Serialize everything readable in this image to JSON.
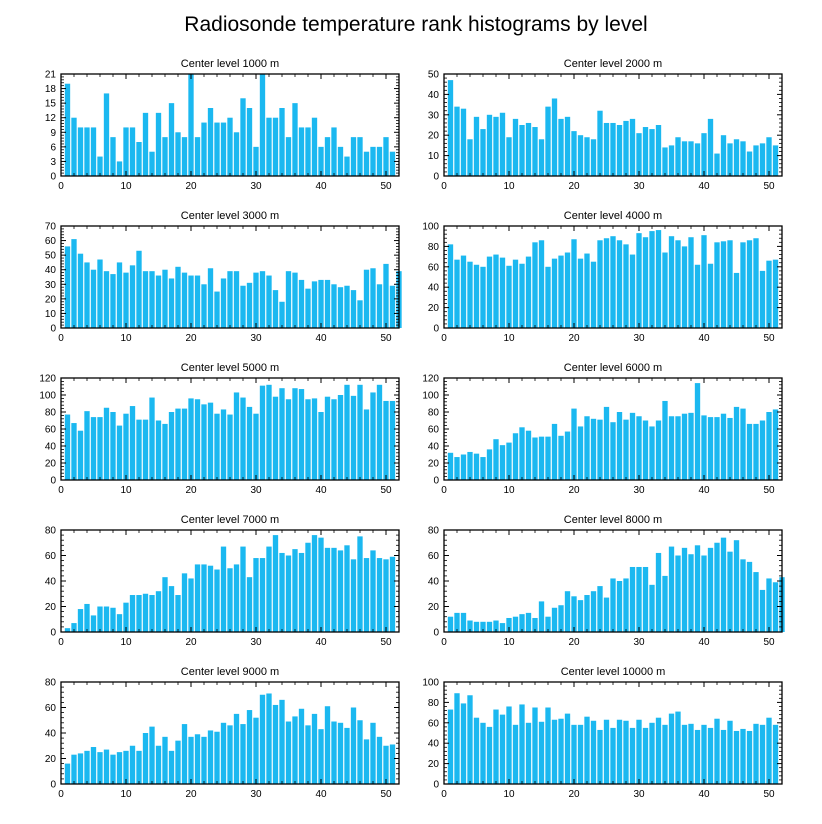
{
  "figure": {
    "title": "Radiosonde temperature rank histograms by level",
    "bar_color": "#1bb8f0",
    "axis_color": "#000000"
  },
  "chart_data": [
    {
      "type": "bar",
      "title": "Center level 1000 m",
      "x_start": 1,
      "xlim": [
        0,
        52
      ],
      "xticks": [
        0,
        10,
        20,
        30,
        40,
        50
      ],
      "ylim": [
        0,
        21
      ],
      "yticks": [
        0,
        3,
        6,
        9,
        12,
        15,
        18,
        21
      ],
      "values": [
        19,
        12,
        10,
        10,
        10,
        4,
        17,
        8,
        3,
        10,
        10,
        7,
        13,
        5,
        13,
        8,
        15,
        9,
        8,
        21,
        8,
        11,
        14,
        11,
        11,
        12,
        9,
        16,
        14,
        6,
        21,
        12,
        12,
        14,
        8,
        15,
        10,
        10,
        12,
        6,
        8,
        10,
        6,
        4,
        8,
        8,
        5,
        6,
        6,
        8,
        5
      ]
    },
    {
      "type": "bar",
      "title": "Center level 2000 m",
      "x_start": 1,
      "xlim": [
        0,
        52
      ],
      "xticks": [
        0,
        10,
        20,
        30,
        40,
        50
      ],
      "ylim": [
        0,
        50
      ],
      "yticks": [
        0,
        10,
        20,
        30,
        40,
        50
      ],
      "values": [
        47,
        34,
        33,
        18,
        29,
        23,
        30,
        29,
        31,
        19,
        28,
        25,
        26,
        24,
        18,
        34,
        38,
        28,
        29,
        22,
        20,
        19,
        18,
        32,
        26,
        26,
        25,
        27,
        28,
        21,
        24,
        23,
        25,
        14,
        15,
        19,
        17,
        17,
        16,
        21,
        28,
        11,
        20,
        16,
        18,
        17,
        12,
        15,
        16,
        19,
        15
      ]
    },
    {
      "type": "bar",
      "title": "Center level 3000 m",
      "x_start": 1,
      "xlim": [
        0,
        52
      ],
      "xticks": [
        0,
        10,
        20,
        30,
        40,
        50
      ],
      "ylim": [
        0,
        70
      ],
      "yticks": [
        0,
        10,
        20,
        30,
        40,
        50,
        60,
        70
      ],
      "values": [
        56,
        61,
        51,
        45,
        40,
        47,
        39,
        37,
        45,
        38,
        43,
        53,
        39,
        39,
        36,
        40,
        34,
        42,
        38,
        36,
        36,
        30,
        41,
        25,
        34,
        39,
        39,
        29,
        31,
        38,
        39,
        36,
        26,
        18,
        39,
        38,
        33,
        27,
        32,
        33,
        33,
        30,
        28,
        29,
        26,
        19,
        40,
        41,
        30,
        44,
        29,
        39
      ]
    },
    {
      "type": "bar",
      "title": "Center level 4000 m",
      "x_start": 1,
      "xlim": [
        0,
        52
      ],
      "xticks": [
        0,
        10,
        20,
        30,
        40,
        50
      ],
      "ylim": [
        0,
        100
      ],
      "yticks": [
        0,
        20,
        40,
        60,
        80,
        100
      ],
      "values": [
        82,
        67,
        71,
        65,
        62,
        60,
        70,
        72,
        69,
        61,
        67,
        63,
        70,
        84,
        86,
        60,
        68,
        71,
        74,
        87,
        68,
        73,
        65,
        86,
        88,
        90,
        86,
        82,
        72,
        93,
        89,
        95,
        96,
        74,
        90,
        86,
        80,
        89,
        62,
        91,
        63,
        84,
        85,
        86,
        54,
        84,
        86,
        88,
        56,
        66,
        67
      ]
    },
    {
      "type": "bar",
      "title": "Center level 5000 m",
      "x_start": 1,
      "xlim": [
        0,
        52
      ],
      "xticks": [
        0,
        10,
        20,
        30,
        40,
        50
      ],
      "ylim": [
        0,
        120
      ],
      "yticks": [
        0,
        20,
        40,
        60,
        80,
        100,
        120
      ],
      "values": [
        77,
        67,
        58,
        81,
        74,
        74,
        85,
        80,
        64,
        78,
        87,
        71,
        71,
        97,
        70,
        66,
        80,
        84,
        84,
        96,
        95,
        89,
        91,
        78,
        83,
        77,
        103,
        97,
        86,
        78,
        111,
        112,
        98,
        108,
        95,
        108,
        107,
        95,
        96,
        80,
        98,
        95,
        100,
        112,
        99,
        112,
        83,
        103,
        112,
        93,
        93
      ]
    },
    {
      "type": "bar",
      "title": "Center level 6000 m",
      "x_start": 1,
      "xlim": [
        0,
        52
      ],
      "xticks": [
        0,
        10,
        20,
        30,
        40,
        50
      ],
      "ylim": [
        0,
        120
      ],
      "yticks": [
        0,
        20,
        40,
        60,
        80,
        100,
        120
      ],
      "values": [
        32,
        27,
        30,
        33,
        31,
        27,
        36,
        48,
        41,
        44,
        55,
        62,
        58,
        50,
        51,
        51,
        66,
        52,
        57,
        84,
        63,
        75,
        72,
        71,
        86,
        68,
        80,
        71,
        79,
        75,
        70,
        63,
        70,
        93,
        75,
        75,
        78,
        79,
        114,
        76,
        74,
        74,
        78,
        73,
        86,
        84,
        66,
        66,
        70,
        80,
        83
      ]
    },
    {
      "type": "bar",
      "title": "Center level 7000 m",
      "x_start": 1,
      "xlim": [
        0,
        52
      ],
      "xticks": [
        0,
        10,
        20,
        30,
        40,
        50
      ],
      "ylim": [
        0,
        80
      ],
      "yticks": [
        0,
        20,
        40,
        60,
        80
      ],
      "values": [
        3,
        7,
        18,
        22,
        13,
        20,
        20,
        19,
        14,
        23,
        29,
        29,
        30,
        29,
        32,
        43,
        36,
        29,
        46,
        42,
        53,
        53,
        52,
        49,
        67,
        50,
        53,
        67,
        43,
        58,
        58,
        67,
        76,
        62,
        60,
        65,
        62,
        70,
        76,
        74,
        66,
        66,
        64,
        68,
        57,
        75,
        58,
        64,
        58,
        57,
        59
      ]
    },
    {
      "type": "bar",
      "title": "Center level 8000 m",
      "x_start": 1,
      "xlim": [
        0,
        52
      ],
      "xticks": [
        0,
        10,
        20,
        30,
        40,
        50
      ],
      "ylim": [
        0,
        80
      ],
      "yticks": [
        0,
        20,
        40,
        60,
        80
      ],
      "values": [
        12,
        15,
        15,
        9,
        8,
        8,
        8,
        9,
        7,
        11,
        12,
        14,
        15,
        11,
        24,
        12,
        19,
        21,
        32,
        28,
        25,
        29,
        32,
        36,
        27,
        42,
        40,
        42,
        51,
        51,
        51,
        37,
        62,
        44,
        67,
        60,
        66,
        61,
        68,
        60,
        66,
        70,
        74,
        63,
        72,
        57,
        55,
        47,
        33,
        42,
        39,
        43
      ]
    },
    {
      "type": "bar",
      "title": "Center level 9000 m",
      "x_start": 1,
      "xlim": [
        0,
        52
      ],
      "xticks": [
        0,
        10,
        20,
        30,
        40,
        50
      ],
      "ylim": [
        0,
        80
      ],
      "yticks": [
        0,
        20,
        40,
        60,
        80
      ],
      "values": [
        16,
        23,
        24,
        26,
        29,
        25,
        27,
        23,
        25,
        26,
        30,
        26,
        40,
        45,
        30,
        37,
        26,
        34,
        47,
        37,
        39,
        37,
        42,
        41,
        48,
        46,
        55,
        47,
        58,
        52,
        70,
        71,
        62,
        66,
        49,
        53,
        59,
        46,
        55,
        43,
        61,
        49,
        48,
        44,
        60,
        50,
        35,
        48,
        37,
        30,
        31
      ]
    },
    {
      "type": "bar",
      "title": "Center level 10000 m",
      "x_start": 1,
      "xlim": [
        0,
        52
      ],
      "xticks": [
        0,
        10,
        20,
        30,
        40,
        50
      ],
      "ylim": [
        0,
        100
      ],
      "yticks": [
        0,
        20,
        40,
        60,
        80,
        100
      ],
      "values": [
        73,
        89,
        79,
        87,
        65,
        60,
        56,
        73,
        68,
        76,
        58,
        78,
        60,
        75,
        61,
        75,
        63,
        64,
        69,
        58,
        58,
        66,
        62,
        53,
        63,
        55,
        63,
        62,
        55,
        63,
        55,
        60,
        65,
        58,
        69,
        71,
        58,
        59,
        53,
        58,
        55,
        64,
        53,
        62,
        52,
        54,
        52,
        59,
        58,
        65,
        58
      ]
    }
  ]
}
